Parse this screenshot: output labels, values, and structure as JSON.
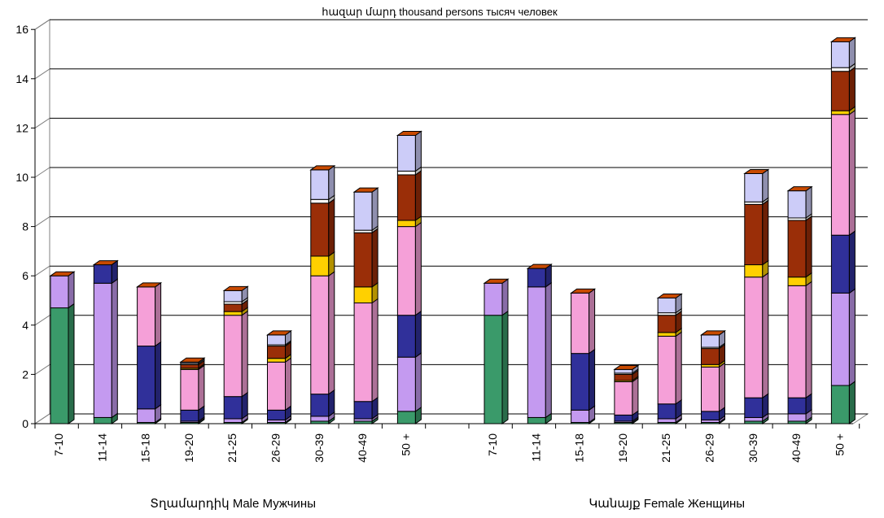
{
  "chart_data": {
    "type": "bar",
    "stacked": true,
    "three_d": true,
    "title": "հազար մարդ thousand persons тысяч человек",
    "xlabel": "",
    "ylabel": "",
    "ylim": [
      0,
      16
    ],
    "yticks": [
      0,
      2,
      4,
      6,
      8,
      10,
      12,
      14,
      16
    ],
    "grid": true,
    "legend": "none",
    "groups": [
      {
        "label": "Տղամարդիկ  Male  Мужчины",
        "categories": [
          "7-10",
          "11-14",
          "15-18",
          "19-20",
          "21-25",
          "26-29",
          "30-39",
          "40-49",
          "50 +"
        ],
        "series": [
          {
            "color": "#3a9a6a",
            "values": [
              4.7,
              0.25,
              0.05,
              0.05,
              0.05,
              0.05,
              0.1,
              0.1,
              0.5
            ]
          },
          {
            "color": "#c49af0",
            "values": [
              1.3,
              5.45,
              0.55,
              0.05,
              0.15,
              0.1,
              0.2,
              0.1,
              2.2
            ]
          },
          {
            "color": "#30309a",
            "values": [
              0,
              0.75,
              2.55,
              0.45,
              0.9,
              0.4,
              0.9,
              0.7,
              1.7
            ]
          },
          {
            "color": "#f5a0d8",
            "values": [
              0,
              0,
              2.4,
              1.65,
              3.3,
              1.95,
              4.8,
              4.0,
              3.6
            ]
          },
          {
            "color": "#ffd000",
            "values": [
              0,
              0,
              0,
              0.05,
              0.15,
              0.15,
              0.8,
              0.65,
              0.25
            ]
          },
          {
            "color": "#9a2e08",
            "values": [
              0,
              0,
              0,
              0.15,
              0.3,
              0.5,
              2.15,
              2.2,
              1.85
            ]
          },
          {
            "color": "#ffffff",
            "values": [
              0,
              0,
              0,
              0.05,
              0.1,
              0.05,
              0.15,
              0.1,
              0.15
            ]
          },
          {
            "color": "#ccccf8",
            "values": [
              0,
              0,
              0,
              0.05,
              0.45,
              0.4,
              1.2,
              1.55,
              1.45
            ]
          }
        ]
      },
      {
        "label": "Կանայք Female Женщины",
        "categories": [
          "7-10",
          "11-14",
          "15-18",
          "19-20",
          "21-25",
          "26-29",
          "30-39",
          "40-49",
          "50 +"
        ],
        "series": [
          {
            "color": "#3a9a6a",
            "values": [
              4.4,
              0.25,
              0.05,
              0.05,
              0.05,
              0.05,
              0.1,
              0.1,
              1.55
            ]
          },
          {
            "color": "#c49af0",
            "values": [
              1.3,
              5.3,
              0.5,
              0.05,
              0.15,
              0.1,
              0.15,
              0.3,
              3.75
            ]
          },
          {
            "color": "#30309a",
            "values": [
              0,
              0.75,
              2.3,
              0.25,
              0.6,
              0.35,
              0.8,
              0.65,
              2.35
            ]
          },
          {
            "color": "#f5a0d8",
            "values": [
              0,
              0,
              2.45,
              1.35,
              2.75,
              1.8,
              4.9,
              4.55,
              4.9
            ]
          },
          {
            "color": "#ffd000",
            "values": [
              0,
              0,
              0,
              0.05,
              0.15,
              0.1,
              0.5,
              0.35,
              0.15
            ]
          },
          {
            "color": "#9a2e08",
            "values": [
              0,
              0,
              0,
              0.25,
              0.7,
              0.65,
              2.45,
              2.3,
              1.6
            ]
          },
          {
            "color": "#ffffff",
            "values": [
              0,
              0,
              0,
              0.05,
              0.1,
              0.05,
              0.1,
              0.1,
              0.15
            ]
          },
          {
            "color": "#ccccf8",
            "values": [
              0,
              0,
              0,
              0.15,
              0.6,
              0.5,
              1.15,
              1.1,
              1.05
            ]
          }
        ]
      }
    ]
  }
}
